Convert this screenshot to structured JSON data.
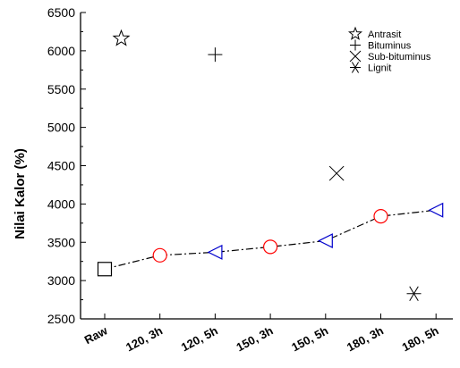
{
  "chart_data": {
    "type": "scatter",
    "ylabel": "Nilai Kalor (%)",
    "ylim": [
      2500,
      6500
    ],
    "yticks": [
      2500,
      3000,
      3500,
      4000,
      4500,
      5000,
      5500,
      6000,
      6500
    ],
    "categories": [
      "Raw",
      "120, 3h",
      "120, 5h",
      "150, 3h",
      "150, 5h",
      "180, 3h",
      "180, 5h"
    ],
    "series": [
      {
        "marker": "mixed",
        "line": "dash-dot",
        "points": [
          {
            "category": "Raw",
            "y": 3150,
            "marker": "square",
            "color": "#000000"
          },
          {
            "category": "120, 3h",
            "y": 3330,
            "marker": "circle",
            "color": "#ff0000"
          },
          {
            "category": "120, 5h",
            "y": 3370,
            "marker": "triangle-left",
            "color": "#0000cc"
          },
          {
            "category": "150, 3h",
            "y": 3440,
            "marker": "circle",
            "color": "#ff0000"
          },
          {
            "category": "150, 5h",
            "y": 3520,
            "marker": "triangle-left",
            "color": "#0000cc"
          },
          {
            "category": "180, 3h",
            "y": 3840,
            "marker": "circle",
            "color": "#ff0000"
          },
          {
            "category": "180, 5h",
            "y": 3920,
            "marker": "triangle-left",
            "color": "#0000cc"
          }
        ]
      }
    ],
    "references": [
      {
        "name": "Antrasit",
        "marker": "star",
        "x_category": "Raw",
        "x_offset": 0.3,
        "y": 6160
      },
      {
        "name": "Bituminus",
        "marker": "plus",
        "x_category": "120, 5h",
        "x_offset": 0.0,
        "y": 5950
      },
      {
        "name": "Sub-bituminus",
        "marker": "x",
        "x_category": "150, 5h",
        "x_offset": 0.2,
        "y": 4400
      },
      {
        "name": "Lignit",
        "marker": "asterisk",
        "x_category": "180, 3h",
        "x_offset": 0.6,
        "y": 2830
      }
    ],
    "legend": {
      "placement": "top-right",
      "entries": [
        {
          "label": "Antrasit",
          "marker": "star"
        },
        {
          "label": "Bituminus",
          "marker": "plus"
        },
        {
          "label": "Sub-bituminus",
          "marker": "x"
        },
        {
          "label": "Lignit",
          "marker": "asterisk"
        }
      ]
    },
    "grid": false
  }
}
